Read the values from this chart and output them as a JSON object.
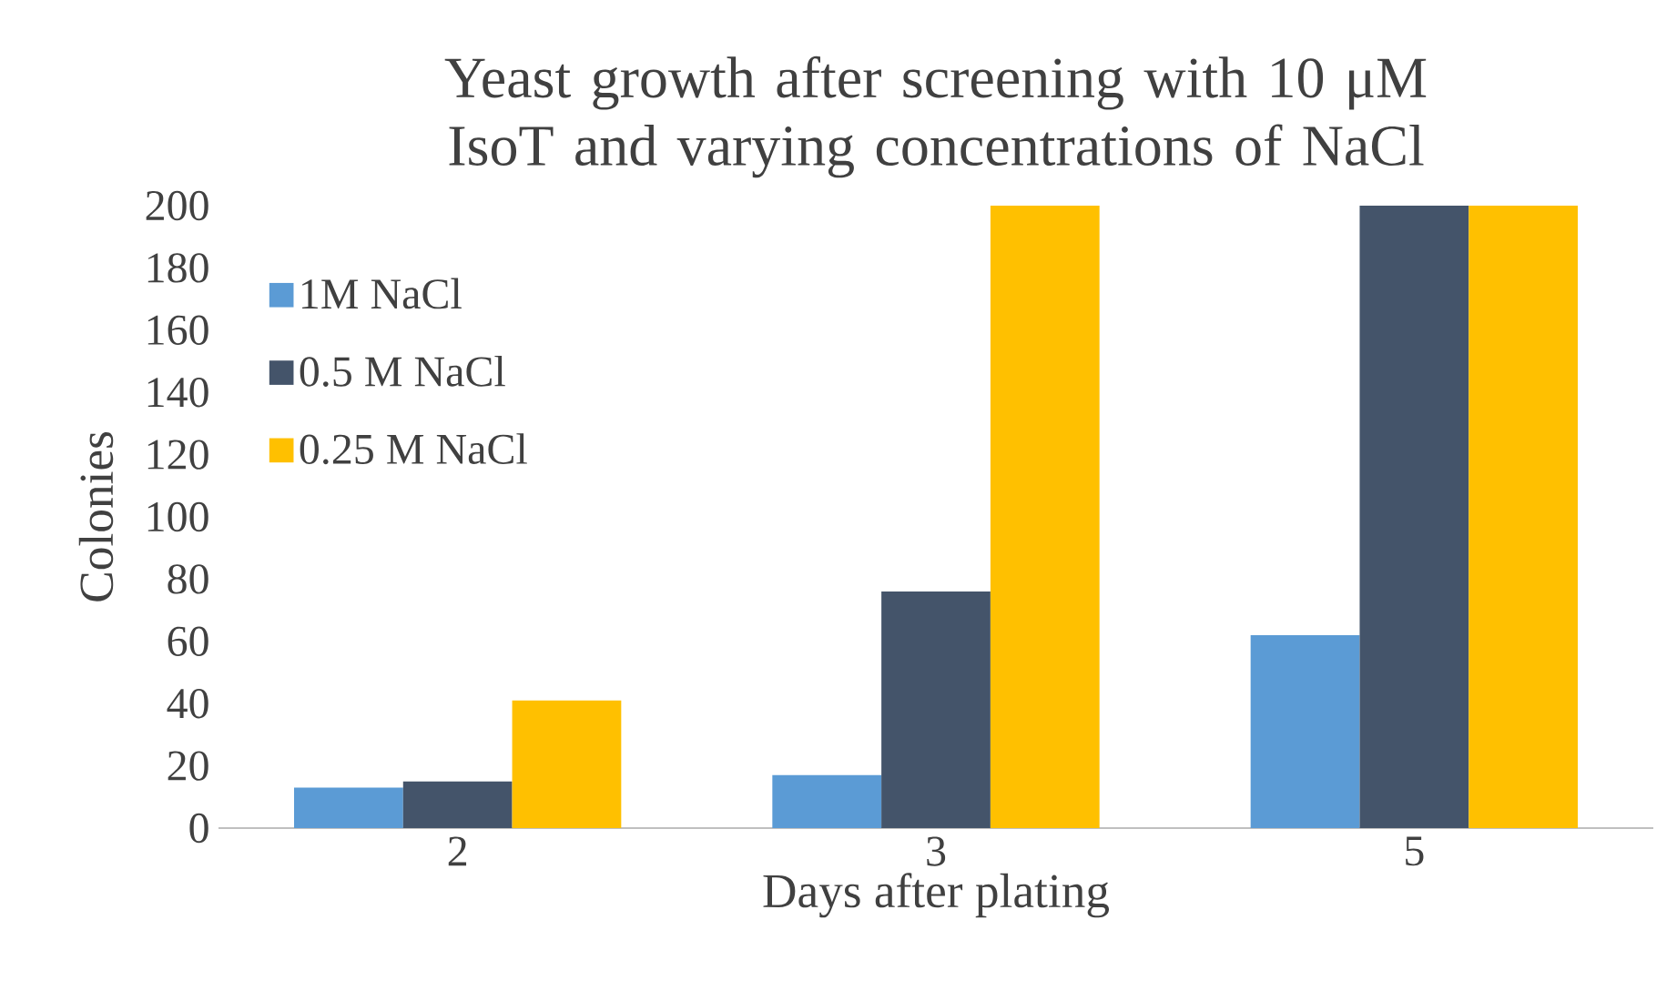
{
  "chart_data": {
    "type": "bar",
    "title": "Yeast growth after screening with 10 μM IsoT and varying concentrations of NaCl",
    "xlabel": "Days after plating",
    "ylabel": "Colonies",
    "categories": [
      "2",
      "3",
      "5"
    ],
    "series": [
      {
        "name": "1M NaCl",
        "color": "#5b9bd5",
        "values": [
          13,
          17,
          62
        ]
      },
      {
        "name": "0.5 M NaCl",
        "color": "#44546a",
        "values": [
          15,
          76,
          200
        ]
      },
      {
        "name": "0.25 M NaCl",
        "color": "#ffc000",
        "values": [
          41,
          200,
          200
        ]
      }
    ],
    "ylim": [
      0,
      200
    ],
    "yticks": [
      0,
      20,
      40,
      60,
      80,
      100,
      120,
      140,
      160,
      180,
      200
    ],
    "grid": false,
    "legend": "top left"
  }
}
